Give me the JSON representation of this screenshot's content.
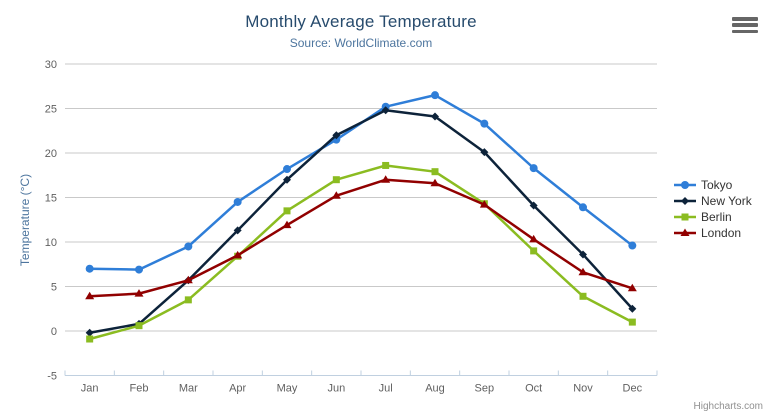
{
  "header": {
    "title": "Monthly Average Temperature",
    "subtitle": "Source: WorldClimate.com"
  },
  "credits": {
    "label": "Highcharts.com"
  },
  "export_menu": {
    "icon": "hamburger-icon"
  },
  "colors": {
    "title": "#274b6d",
    "subtitle": "#4d759e",
    "axis_title": "#4d759e",
    "axis_label": "#606060",
    "grid": "#c9c9c9",
    "axis_line": "#c0d0e0",
    "legend_text": "#333333",
    "credits": "#909090",
    "export_icon": "#666666",
    "background": "#ffffff"
  },
  "chart_data": {
    "type": "line",
    "title": "Monthly Average Temperature",
    "subtitle": "Source: WorldClimate.com",
    "xlabel": "",
    "ylabel": "Temperature (°C)",
    "ylim": [
      -5,
      30
    ],
    "yticks": [
      -5,
      0,
      5,
      10,
      15,
      20,
      25,
      30
    ],
    "grid": true,
    "legend_position": "right",
    "categories": [
      "Jan",
      "Feb",
      "Mar",
      "Apr",
      "May",
      "Jun",
      "Jul",
      "Aug",
      "Sep",
      "Oct",
      "Nov",
      "Dec"
    ],
    "series": [
      {
        "name": "Tokyo",
        "color": "#2f7ed8",
        "marker": "circle",
        "values": [
          7.0,
          6.9,
          9.5,
          14.5,
          18.2,
          21.5,
          25.2,
          26.5,
          23.3,
          18.3,
          13.9,
          9.6
        ]
      },
      {
        "name": "New York",
        "color": "#0d233a",
        "marker": "diamond",
        "values": [
          -0.2,
          0.8,
          5.7,
          11.3,
          17.0,
          22.0,
          24.8,
          24.1,
          20.1,
          14.1,
          8.6,
          2.5
        ]
      },
      {
        "name": "Berlin",
        "color": "#8bbc21",
        "marker": "square",
        "values": [
          -0.9,
          0.6,
          3.5,
          8.4,
          13.5,
          17.0,
          18.6,
          17.9,
          14.3,
          9.0,
          3.9,
          1.0
        ]
      },
      {
        "name": "London",
        "color": "#910000",
        "marker": "triangle",
        "values": [
          3.9,
          4.2,
          5.7,
          8.5,
          11.9,
          15.2,
          17.0,
          16.6,
          14.2,
          10.3,
          6.6,
          4.8
        ]
      }
    ]
  }
}
